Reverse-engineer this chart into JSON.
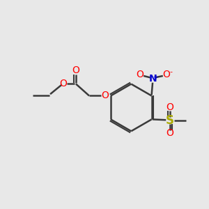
{
  "background_color": "#e8e8e8",
  "bond_color": "#3a3a3a",
  "red": "#ff0000",
  "blue": "#0000cc",
  "yellow_green": "#aaaa00",
  "figsize": [
    3.0,
    3.0
  ],
  "dpi": 100,
  "xlim": [
    0,
    10
  ],
  "ylim": [
    0,
    10
  ]
}
